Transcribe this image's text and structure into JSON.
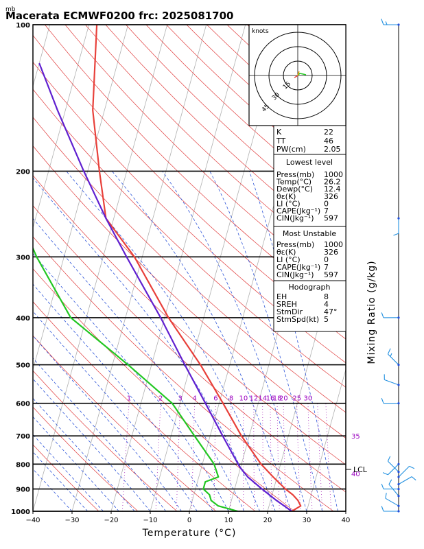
{
  "header": {
    "title": "Macerata ECMWF0200  frc: 2025081700",
    "unit_label": "mb"
  },
  "colors": {
    "temperature": "#e8403a",
    "dewpoint": "#22c722",
    "parcel": "#6020d0",
    "dry_adiabat": "#e03a3a",
    "moist_adiabat": "#2e55d8",
    "mixing_ratio": "#b040c0",
    "isotherm": "#b0b0b0",
    "isobar": "#000000",
    "wind_barb": "#1f8fe0"
  },
  "chart_data": {
    "type": "line",
    "diagram": "skew-T log-p",
    "title": "Macerata ECMWF0200  frc: 2025081700",
    "xlabel": "Temperature (°C)",
    "ylabel": "",
    "right_label": "Mixing Ratio (g/kg)",
    "xlim": [
      -40,
      40
    ],
    "ylim_mb": [
      1000,
      100
    ],
    "x_ticks": [
      "−40",
      "−30",
      "−20",
      "−10",
      "0",
      "10",
      "20",
      "30",
      "40"
    ],
    "pressure_ticks": [
      100,
      200,
      300,
      400,
      500,
      600,
      700,
      800,
      900,
      1000
    ],
    "mixing_ratio_labels": [
      "1",
      "2",
      "3",
      "4",
      "6",
      "8",
      "10",
      "12",
      "14",
      "16",
      "18",
      "20",
      "25",
      "30",
      "35",
      "40"
    ],
    "lcl_label": "LCL",
    "lcl_pressure_mb": 810,
    "series": [
      {
        "key": "temperature",
        "pressure": [
          1000,
          975,
          950,
          925,
          900,
          850,
          800,
          700,
          600,
          500,
          400,
          300,
          250,
          200,
          150,
          100
        ],
        "values": [
          26.2,
          28.1,
          27.0,
          25.3,
          23.0,
          19.0,
          15.0,
          8.0,
          1.0,
          -7.5,
          -19.0,
          -32.0,
          -42.0,
          -47.0,
          -53.0,
          -58.0
        ]
      },
      {
        "key": "dewpoint",
        "pressure": [
          1000,
          975,
          950,
          925,
          900,
          870,
          850,
          800,
          700,
          600,
          500,
          400,
          300,
          250,
          200,
          150,
          100
        ],
        "values": [
          12.4,
          7.0,
          4.8,
          4.0,
          2.0,
          2.0,
          5.0,
          3.0,
          -4.0,
          -12.0,
          -26.0,
          -44.0,
          -57.0,
          -64.0,
          -66.0,
          -72.0,
          -78.0
        ]
      },
      {
        "key": "parcel",
        "pressure": [
          1000,
          950,
          900,
          850,
          810,
          700,
          600,
          500,
          400,
          300,
          250,
          200,
          150,
          120
        ],
        "values": [
          26.2,
          21.5,
          17.0,
          12.5,
          9.7,
          3.2,
          -3.5,
          -11.5,
          -21.0,
          -34.0,
          -42.0,
          -51.0,
          -62.0,
          -70.0
        ]
      }
    ],
    "hodograph": {
      "units": "knots",
      "ring_labels": [
        "15",
        "30",
        "45"
      ]
    }
  },
  "indices": {
    "k_label": "K",
    "k_value": "22",
    "tt_label": "TT",
    "tt_value": "46",
    "pw_label": "PW(cm)",
    "pw_value": "2.05"
  },
  "lowest_level": {
    "header": "Lowest level",
    "rows": [
      {
        "label": "Press(mb)",
        "value": "1000"
      },
      {
        "label": "Temp(°C)",
        "value": "26.2"
      },
      {
        "label": "Dewp(°C)",
        "value": "12.4"
      },
      {
        "label": "θε(K)",
        "value": "326"
      },
      {
        "label": "LI (°C)",
        "value": "0"
      },
      {
        "label": "CAPE(Jkg⁻¹)",
        "value": "7"
      },
      {
        "label": "CIN(Jkg⁻¹)",
        "value": "597"
      }
    ]
  },
  "most_unstable": {
    "header": "Most Unstable",
    "rows": [
      {
        "label": "Press(mb)",
        "value": "1000"
      },
      {
        "label": "θε(K)",
        "value": "326"
      },
      {
        "label": "LI (°C)",
        "value": "0"
      },
      {
        "label": "CAPE(Jkg⁻¹)",
        "value": "7"
      },
      {
        "label": "CIN(Jkg⁻¹)",
        "value": "597"
      }
    ]
  },
  "hodograph_table": {
    "header": "Hodograph",
    "rows": [
      {
        "label": "EH",
        "value": "8"
      },
      {
        "label": "SREH",
        "value": "4"
      },
      {
        "label": "StmDir",
        "value": "47°"
      },
      {
        "label": "StmSpd(kt)",
        "value": "5"
      }
    ]
  },
  "wind_profile": {
    "pressure": [
      100,
      250,
      400,
      500,
      550,
      600,
      800,
      830,
      850,
      880,
      900,
      930,
      975,
      1000
    ],
    "direction_deg": [
      270,
      180,
      270,
      315,
      290,
      270,
      225,
      315,
      45,
      60,
      270,
      320,
      300,
      270
    ],
    "speed_kt": [
      15,
      10,
      10,
      15,
      10,
      10,
      10,
      10,
      10,
      10,
      10,
      10,
      10,
      10
    ]
  }
}
